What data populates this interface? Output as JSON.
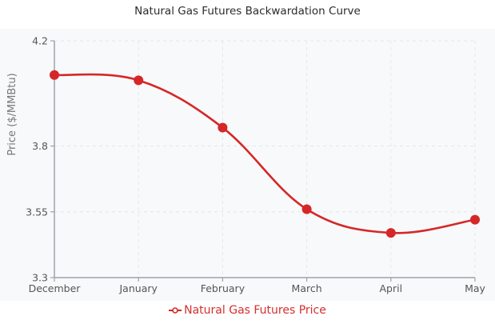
{
  "chart_data": {
    "type": "line",
    "title": "Natural Gas Futures Backwardation Curve",
    "xlabel": "",
    "ylabel": "Price ($/MMBtu)",
    "categories": [
      "December",
      "January",
      "February",
      "March",
      "April",
      "May"
    ],
    "series": [
      {
        "name": "Natural Gas Futures Price",
        "values": [
          4.07,
          4.05,
          3.87,
          3.56,
          3.47,
          3.52
        ],
        "color": "#d62728",
        "smooth": true,
        "markers": true
      }
    ],
    "ylim": [
      3.3,
      4.2
    ],
    "yticks": [
      3.3,
      3.55,
      3.8,
      4.2
    ],
    "ytick_labels": [
      "3.3",
      "3.55",
      "3.8",
      "4.2"
    ],
    "grid": true,
    "grid_style": "dashed",
    "legend_position": "bottom-center"
  },
  "colors": {
    "series": "#d62728",
    "axis": "#9aa3ad",
    "grid": "#e4e6e9",
    "plot_background": "#f8f9fa"
  }
}
